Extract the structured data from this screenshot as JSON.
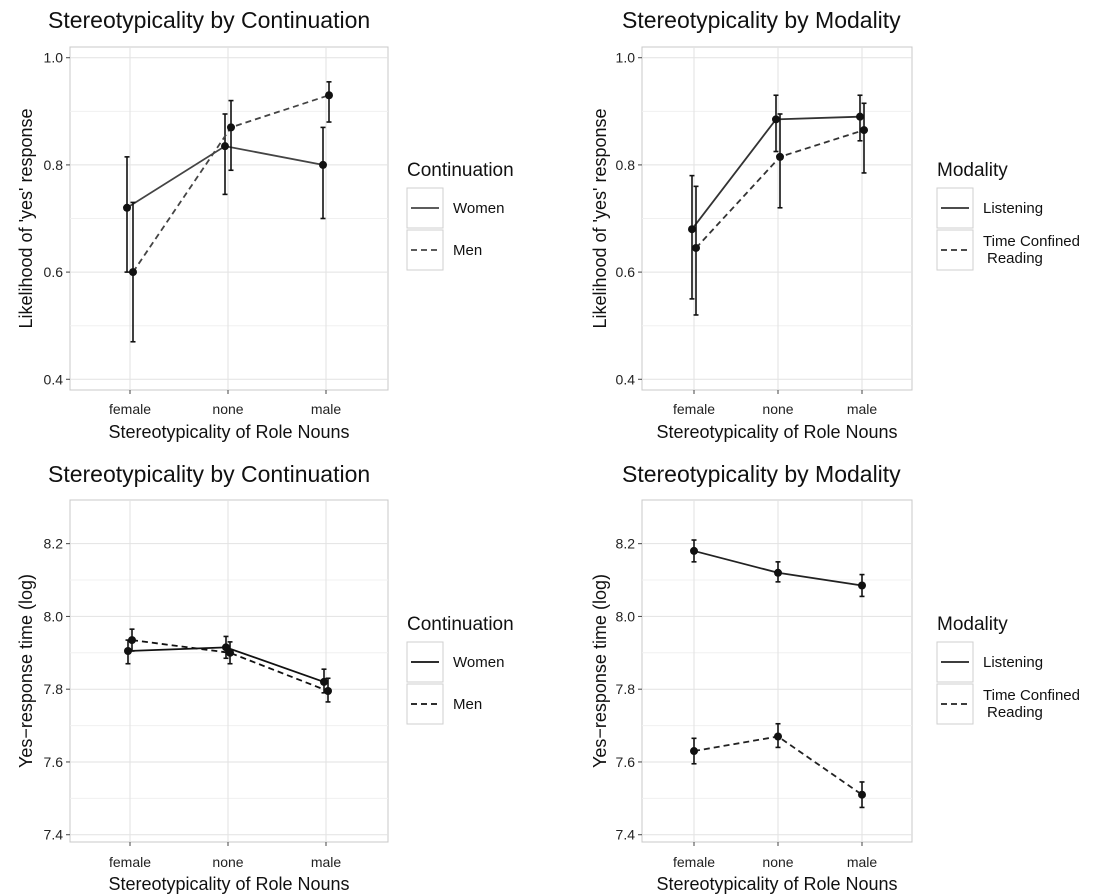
{
  "chart_data": [
    {
      "type": "line",
      "title": "Stereotypicality by Continuation",
      "xlabel": "Stereotypicality of Role Nouns",
      "ylabel": "Likelihood of 'yes' response",
      "categories": [
        "female",
        "none",
        "male"
      ],
      "ylim": [
        0.38,
        1.02
      ],
      "yticks": [
        0.4,
        0.6,
        0.8,
        1.0
      ],
      "ytick_labels": [
        "0.4",
        "0.6",
        "0.8",
        "1.0"
      ],
      "grid": true,
      "legend": {
        "title": "Continuation",
        "position": "right"
      },
      "line_color": "#444444",
      "series": [
        {
          "name": "Women",
          "dash": "solid",
          "values": [
            0.72,
            0.835,
            0.8
          ],
          "lower": [
            0.6,
            0.745,
            0.7
          ],
          "upper": [
            0.815,
            0.895,
            0.87
          ]
        },
        {
          "name": "Men",
          "dash": "dashed",
          "values": [
            0.6,
            0.87,
            0.93
          ],
          "lower": [
            0.47,
            0.79,
            0.88
          ],
          "upper": [
            0.73,
            0.92,
            0.955
          ]
        }
      ]
    },
    {
      "type": "line",
      "title": "Stereotypicality by Modality",
      "xlabel": "Stereotypicality of Role Nouns",
      "ylabel": "Likelihood of 'yes' response",
      "categories": [
        "female",
        "none",
        "male"
      ],
      "ylim": [
        0.38,
        1.02
      ],
      "yticks": [
        0.4,
        0.6,
        0.8,
        1.0
      ],
      "ytick_labels": [
        "0.4",
        "0.6",
        "0.8",
        "1.0"
      ],
      "grid": true,
      "legend": {
        "title": "Modality",
        "position": "right"
      },
      "line_color": "#333333",
      "series": [
        {
          "name": "Listening",
          "dash": "solid",
          "values": [
            0.68,
            0.885,
            0.89
          ],
          "lower": [
            0.55,
            0.825,
            0.845
          ],
          "upper": [
            0.78,
            0.93,
            0.93
          ]
        },
        {
          "name": "Time Confined\nReading",
          "dash": "dashed",
          "values": [
            0.645,
            0.815,
            0.865
          ],
          "lower": [
            0.52,
            0.72,
            0.785
          ],
          "upper": [
            0.76,
            0.895,
            0.915
          ]
        }
      ]
    },
    {
      "type": "line",
      "title": "Stereotypicality by Continuation",
      "xlabel": "Stereotypicality of Role Nouns",
      "ylabel": "Yes−response time (log)",
      "categories": [
        "female",
        "none",
        "male"
      ],
      "ylim": [
        7.38,
        8.32
      ],
      "yticks": [
        7.4,
        7.6,
        7.8,
        8.0,
        8.2
      ],
      "ytick_labels": [
        "7.4",
        "7.6",
        "7.8",
        "8.0",
        "8.2"
      ],
      "grid": true,
      "legend": {
        "title": "Continuation",
        "position": "right"
      },
      "line_color": "#111111",
      "series": [
        {
          "name": "Women",
          "dash": "solid",
          "values": [
            7.905,
            7.915,
            7.82
          ],
          "lower": [
            7.87,
            7.885,
            7.79
          ],
          "upper": [
            7.935,
            7.945,
            7.855
          ]
        },
        {
          "name": "Men",
          "dash": "dashed",
          "values": [
            7.935,
            7.9,
            7.795
          ],
          "lower": [
            7.905,
            7.87,
            7.765
          ],
          "upper": [
            7.965,
            7.93,
            7.83
          ]
        }
      ]
    },
    {
      "type": "line",
      "title": "Stereotypicality by Modality",
      "xlabel": "Stereotypicality of Role Nouns",
      "ylabel": "Yes−response time (log)",
      "categories": [
        "female",
        "none",
        "male"
      ],
      "ylim": [
        7.38,
        8.32
      ],
      "yticks": [
        7.4,
        7.6,
        7.8,
        8.0,
        8.2
      ],
      "ytick_labels": [
        "7.4",
        "7.6",
        "7.8",
        "8.0",
        "8.2"
      ],
      "grid": true,
      "legend": {
        "title": "Modality",
        "position": "right"
      },
      "line_color": "#222222",
      "series": [
        {
          "name": "Listening",
          "dash": "solid",
          "values": [
            8.18,
            8.12,
            8.085
          ],
          "lower": [
            8.15,
            8.095,
            8.055
          ],
          "upper": [
            8.21,
            8.15,
            8.115
          ]
        },
        {
          "name": "Time Confined\nReading",
          "dash": "dashed",
          "values": [
            7.63,
            7.67,
            7.51
          ],
          "lower": [
            7.595,
            7.64,
            7.475
          ],
          "upper": [
            7.665,
            7.705,
            7.545
          ]
        }
      ]
    }
  ]
}
